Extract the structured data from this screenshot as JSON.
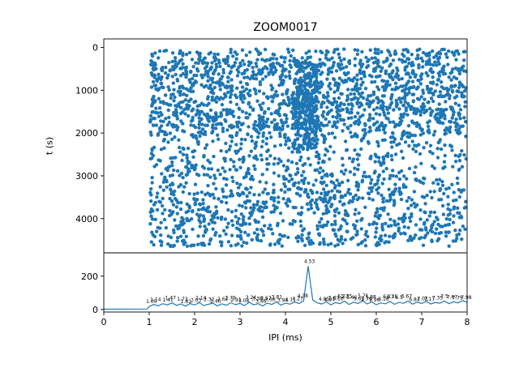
{
  "figure": {
    "background": "#ffffff",
    "accent_color": "#1f77b4"
  },
  "chart_data": [
    {
      "type": "scatter",
      "title": "ZOOM0017",
      "xlabel": "",
      "ylabel": "t (s)",
      "xlim": [
        0,
        8
      ],
      "ylim": [
        -200,
        4800
      ],
      "y_inverted": true,
      "yticks": [
        0,
        1000,
        2000,
        3000,
        4000
      ],
      "marker_color": "#1f77b4",
      "points_spec": {
        "seed": 7,
        "components": [
          {
            "n": 1700,
            "x": [
              1.02,
              7.98
            ],
            "t": [
              250,
              4650
            ]
          },
          {
            "n": 800,
            "x": [
              1.02,
              7.98
            ],
            "t": [
              400,
              2100
            ]
          },
          {
            "n": 260,
            "x": [
              4.2,
              4.7
            ],
            "t": [
              350,
              2400
            ]
          },
          {
            "n": 240,
            "x": [
              1.02,
              7.98
            ],
            "t": [
              3300,
              4650
            ]
          },
          {
            "n": 200,
            "x": [
              1.05,
              7.95
            ],
            "t": [
              40,
              400
            ]
          }
        ]
      }
    },
    {
      "type": "line",
      "xlabel": "IPI (ms)",
      "ylabel": "",
      "xlim": [
        0,
        8
      ],
      "ylim": [
        -15,
        340
      ],
      "xticks": [
        0,
        1,
        2,
        3,
        4,
        5,
        6,
        7,
        8
      ],
      "yticks": [
        0,
        200
      ],
      "color": "#1f77b4",
      "peak": {
        "x": 4.53,
        "y": 260,
        "label": "4.53"
      },
      "x": [
        0,
        0.95,
        1.0,
        1.1,
        1.2,
        1.3,
        1.4,
        1.5,
        1.6,
        1.7,
        1.8,
        1.9,
        2.0,
        2.1,
        2.2,
        2.3,
        2.4,
        2.5,
        2.6,
        2.7,
        2.8,
        2.9,
        3.0,
        3.1,
        3.2,
        3.3,
        3.4,
        3.5,
        3.6,
        3.7,
        3.8,
        3.9,
        4.0,
        4.1,
        4.2,
        4.3,
        4.4,
        4.5,
        4.6,
        4.7,
        4.8,
        4.9,
        5.0,
        5.1,
        5.2,
        5.3,
        5.4,
        5.5,
        5.6,
        5.7,
        5.8,
        5.9,
        6.0,
        6.1,
        6.2,
        6.3,
        6.4,
        6.5,
        6.6,
        6.7,
        6.8,
        6.9,
        7.0,
        7.1,
        7.2,
        7.3,
        7.4,
        7.5,
        7.6,
        7.7,
        7.8,
        7.9,
        8.0
      ],
      "y": [
        2,
        3,
        18,
        30,
        22,
        35,
        28,
        40,
        25,
        33,
        20,
        36,
        27,
        42,
        24,
        31,
        38,
        22,
        34,
        26,
        41,
        29,
        37,
        23,
        44,
        28,
        35,
        21,
        39,
        30,
        46,
        26,
        38,
        32,
        45,
        36,
        52,
        260,
        58,
        40,
        33,
        47,
        28,
        42,
        35,
        50,
        30,
        44,
        36,
        52,
        33,
        46,
        29,
        40,
        34,
        48,
        31,
        43,
        37,
        50,
        32,
        45,
        36,
        49,
        33,
        42,
        38,
        51,
        35,
        47,
        40,
        53,
        44
      ],
      "annotations": [
        "1.05",
        "1.14",
        "1.41",
        "1.47",
        "1.73",
        "1.81",
        "2.03",
        "2.14",
        "2.32",
        "2.46",
        "2.62",
        "2.79",
        "2.91",
        "3.08",
        "3.24",
        "3.38",
        "3.46",
        "3.57",
        "3.66",
        "3.81",
        "3.94",
        "4.11",
        "4.27",
        "4.38",
        "4.53",
        "4.85",
        "4.97",
        "5.07",
        "5.16",
        "5.27",
        "5.35",
        "5.46",
        "5.62",
        "5.71",
        "5.79",
        "5.88",
        "5.96",
        "6.16",
        "6.27",
        "6.35",
        "6.5",
        "6.67",
        "6.84",
        "7.02",
        "7.17",
        "7.35",
        "7.5",
        "7.67",
        "7.79",
        "7.98"
      ]
    }
  ]
}
